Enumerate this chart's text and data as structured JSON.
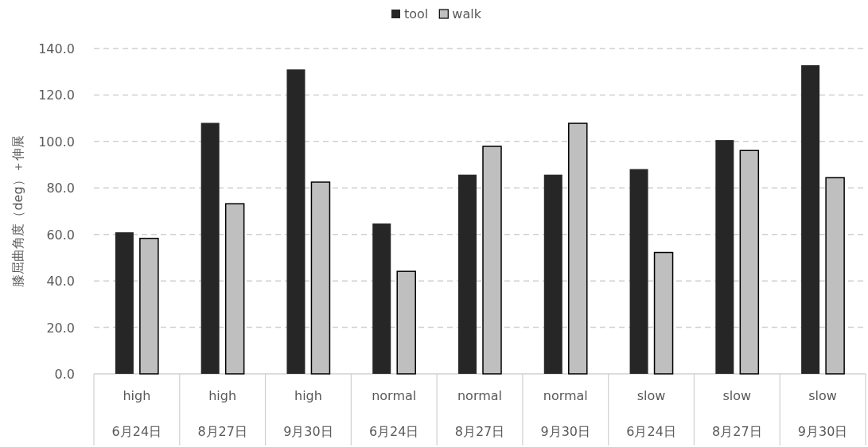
{
  "chart_data": {
    "type": "bar",
    "ylabel": "膝屈曲角度（deg）＋伸展",
    "categories": [
      "high\n6月24日",
      "high\n8月27日",
      "high\n9月30日",
      "normal\n6月24日",
      "normal\n8月27日",
      "normal\n9月30日",
      "slow\n6月24日",
      "slow\n8月27日",
      "slow\n9月30日"
    ],
    "series": [
      {
        "name": "tool",
        "color": "#262626",
        "values": [
          60.9,
          108.0,
          131.0,
          64.7,
          85.7,
          85.7,
          88.1,
          100.6,
          132.8
        ]
      },
      {
        "name": "walk",
        "color": "#bfbfbf",
        "values": [
          58.3,
          73.2,
          82.5,
          44.1,
          97.9,
          107.8,
          52.2,
          96.1,
          84.4
        ]
      }
    ],
    "ylim": [
      0,
      140
    ],
    "yticks": [
      {
        "value": 0,
        "label": "0.0"
      },
      {
        "value": 20,
        "label": "20.0"
      },
      {
        "value": 40,
        "label": "40.0"
      },
      {
        "value": 60,
        "label": "60.0"
      },
      {
        "value": 80,
        "label": "80.0"
      },
      {
        "value": 100,
        "label": "100.0"
      },
      {
        "value": 120,
        "label": "120.0"
      },
      {
        "value": 140,
        "label": "140.0"
      }
    ],
    "grid": "y",
    "legend": "top"
  }
}
